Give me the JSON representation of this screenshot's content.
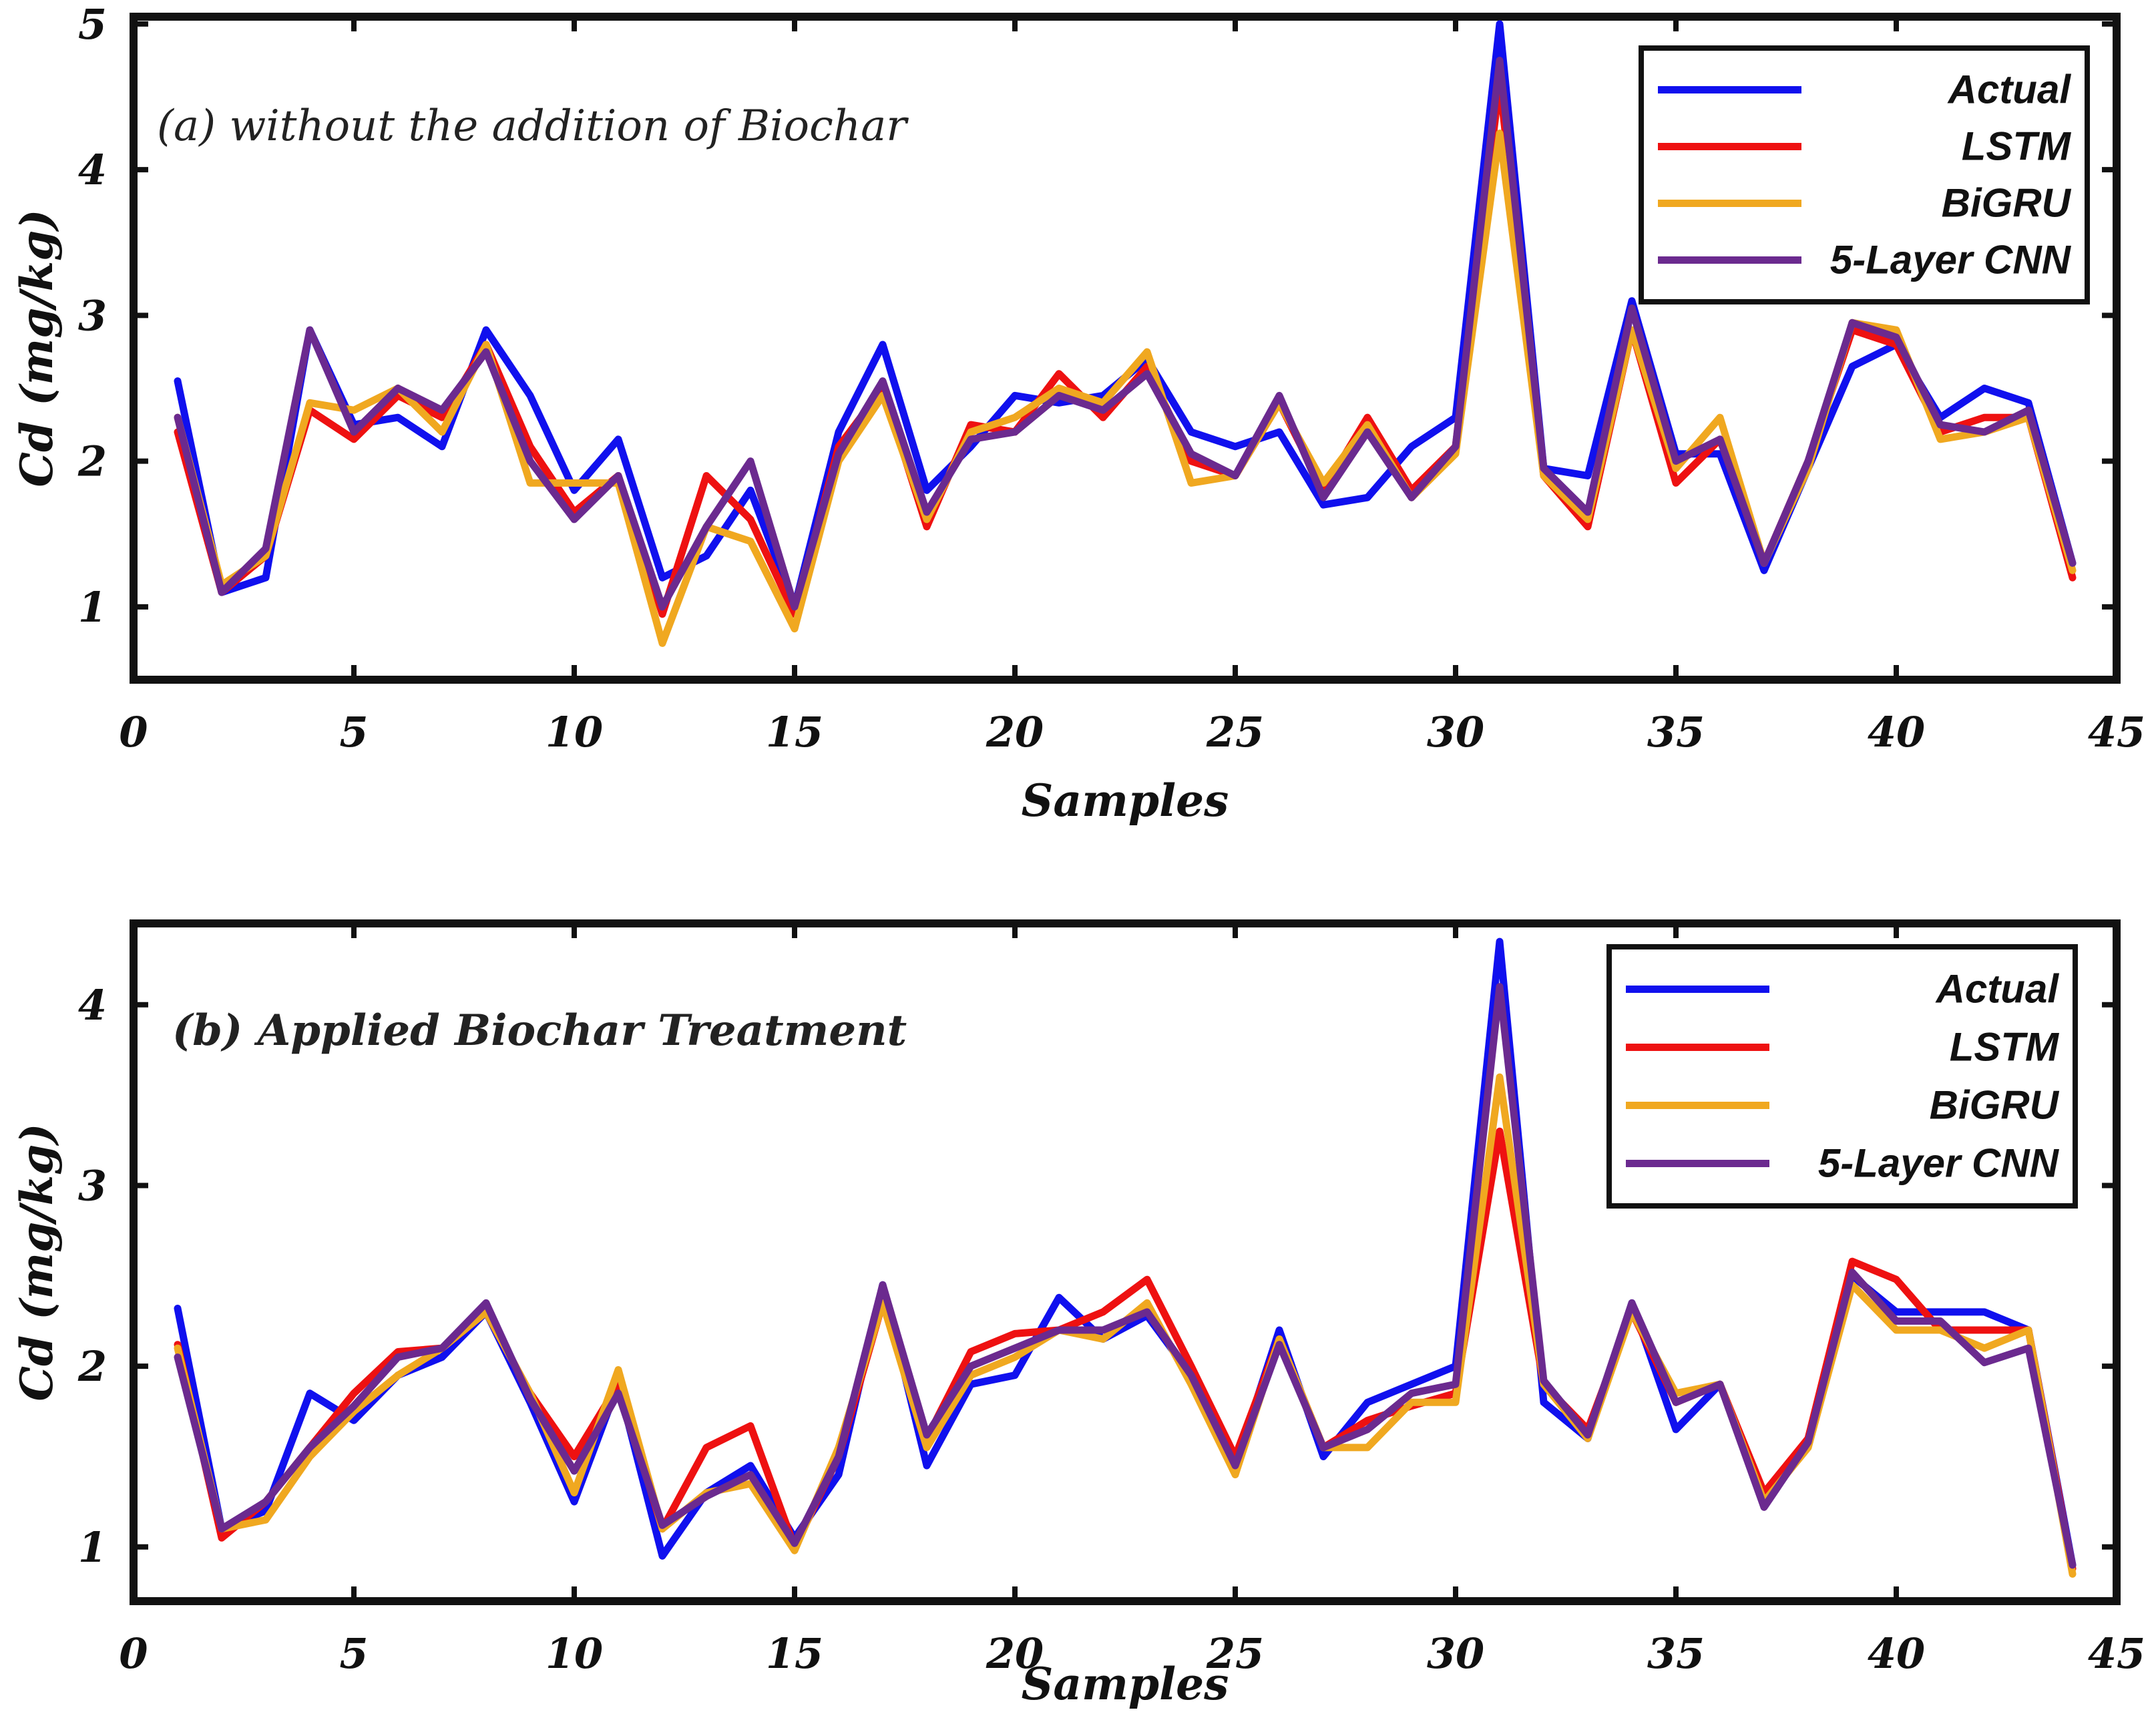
{
  "chart_data": [
    {
      "type": "line",
      "title": "(a) without the addition of Biochar",
      "title_weight": "normal",
      "xlabel": "Samples",
      "ylabel": "Cd (mg/kg)",
      "xlim": [
        0,
        45
      ],
      "ylim": [
        0.5,
        5.05
      ],
      "xticks": [
        0,
        5,
        10,
        15,
        20,
        25,
        30,
        35,
        40,
        45
      ],
      "yticks": [
        1,
        2,
        3,
        4,
        5
      ],
      "legend_position": "top-right",
      "series": [
        {
          "name": "Actual",
          "color": "#1010ee",
          "x": [
            1,
            2,
            3,
            4,
            5,
            6,
            7,
            8,
            9,
            10,
            11,
            12,
            13,
            14,
            15,
            16,
            17,
            18,
            19,
            20,
            21,
            22,
            23,
            24,
            25,
            26,
            27,
            28,
            29,
            30,
            31,
            32,
            33,
            34,
            35,
            36,
            37,
            38,
            39,
            40,
            41,
            42,
            43,
            44
          ],
          "values": [
            2.55,
            1.1,
            1.2,
            2.9,
            2.25,
            2.3,
            2.1,
            2.9,
            2.45,
            1.8,
            2.15,
            1.2,
            1.35,
            1.8,
            1.0,
            2.2,
            2.8,
            1.8,
            2.1,
            2.45,
            2.4,
            2.45,
            2.7,
            2.2,
            2.1,
            2.2,
            1.7,
            1.75,
            2.1,
            2.3,
            5.0,
            1.95,
            1.9,
            3.1,
            2.05,
            2.05,
            1.25,
            1.95,
            2.65,
            2.8,
            2.3,
            2.5,
            2.4,
            1.3
          ]
        },
        {
          "name": "LSTM",
          "color": "#ee1111",
          "x": [
            1,
            2,
            3,
            4,
            5,
            6,
            7,
            8,
            9,
            10,
            11,
            12,
            13,
            14,
            15,
            16,
            17,
            18,
            19,
            20,
            21,
            22,
            23,
            24,
            25,
            26,
            27,
            28,
            29,
            30,
            31,
            32,
            33,
            34,
            35,
            36,
            37,
            38,
            39,
            40,
            41,
            42,
            43,
            44
          ],
          "values": [
            2.2,
            1.1,
            1.35,
            2.35,
            2.15,
            2.45,
            2.3,
            2.8,
            2.1,
            1.65,
            1.9,
            0.95,
            1.9,
            1.6,
            0.95,
            2.1,
            2.5,
            1.55,
            2.25,
            2.2,
            2.6,
            2.3,
            2.65,
            2.0,
            1.9,
            2.4,
            1.8,
            2.3,
            1.8,
            2.1,
            4.6,
            1.9,
            1.55,
            2.9,
            1.85,
            2.15,
            1.3,
            2.0,
            2.9,
            2.8,
            2.2,
            2.3,
            2.3,
            1.2
          ]
        },
        {
          "name": "BiGRU",
          "color": "#f0a820",
          "x": [
            1,
            2,
            3,
            4,
            5,
            6,
            7,
            8,
            9,
            10,
            11,
            12,
            13,
            14,
            15,
            16,
            17,
            18,
            19,
            20,
            21,
            22,
            23,
            24,
            25,
            26,
            27,
            28,
            29,
            30,
            31,
            32,
            33,
            34,
            35,
            36,
            37,
            38,
            39,
            40,
            41,
            42,
            43,
            44
          ],
          "values": [
            2.3,
            1.15,
            1.35,
            2.4,
            2.35,
            2.5,
            2.2,
            2.8,
            1.85,
            1.85,
            1.85,
            0.75,
            1.55,
            1.45,
            0.85,
            2.0,
            2.45,
            1.6,
            2.2,
            2.3,
            2.5,
            2.4,
            2.75,
            1.85,
            1.9,
            2.4,
            1.85,
            2.25,
            1.75,
            2.05,
            4.25,
            1.9,
            1.6,
            2.9,
            1.95,
            2.3,
            1.3,
            1.95,
            2.95,
            2.9,
            2.15,
            2.2,
            2.3,
            1.25
          ]
        },
        {
          "name": "5-Layer CNN",
          "color": "#6b2a8f",
          "x": [
            1,
            2,
            3,
            4,
            5,
            6,
            7,
            8,
            9,
            10,
            11,
            12,
            13,
            14,
            15,
            16,
            17,
            18,
            19,
            20,
            21,
            22,
            23,
            24,
            25,
            26,
            27,
            28,
            29,
            30,
            31,
            32,
            33,
            34,
            35,
            36,
            37,
            38,
            39,
            40,
            41,
            42,
            43,
            44
          ],
          "values": [
            2.3,
            1.1,
            1.4,
            2.9,
            2.2,
            2.5,
            2.35,
            2.75,
            2.0,
            1.6,
            1.9,
            1.0,
            1.55,
            2.0,
            1.0,
            2.05,
            2.55,
            1.65,
            2.15,
            2.2,
            2.45,
            2.35,
            2.6,
            2.05,
            1.9,
            2.45,
            1.75,
            2.2,
            1.75,
            2.1,
            4.75,
            1.95,
            1.65,
            3.05,
            2.0,
            2.15,
            1.3,
            2.0,
            2.95,
            2.85,
            2.25,
            2.2,
            2.35,
            1.3
          ]
        }
      ]
    },
    {
      "type": "line",
      "title": "(b) Applied Biochar Treatment",
      "title_weight": "bold",
      "xlabel": "Samples",
      "ylabel": "Cd (mg/kg)",
      "xlim": [
        0,
        45
      ],
      "ylim": [
        0.7,
        4.45
      ],
      "xticks": [
        0,
        5,
        10,
        15,
        20,
        25,
        30,
        35,
        40,
        45
      ],
      "yticks": [
        1,
        2,
        3,
        4
      ],
      "legend_position": "top-right",
      "series": [
        {
          "name": "Actual",
          "color": "#1010ee",
          "x": [
            1,
            2,
            3,
            4,
            5,
            6,
            7,
            8,
            9,
            10,
            11,
            12,
            13,
            14,
            15,
            16,
            17,
            18,
            19,
            20,
            21,
            22,
            23,
            24,
            25,
            26,
            27,
            28,
            29,
            30,
            31,
            32,
            33,
            34,
            35,
            36,
            37,
            38,
            39,
            40,
            41,
            42,
            43,
            44
          ],
          "values": [
            2.32,
            1.1,
            1.2,
            1.85,
            1.7,
            1.95,
            2.05,
            2.3,
            1.8,
            1.25,
            1.9,
            0.95,
            1.3,
            1.45,
            1.05,
            1.4,
            2.45,
            1.45,
            1.9,
            1.95,
            2.38,
            2.15,
            2.28,
            1.95,
            1.45,
            2.2,
            1.5,
            1.8,
            1.9,
            2.0,
            4.35,
            1.8,
            1.6,
            2.35,
            1.65,
            1.9,
            1.25,
            1.6,
            2.5,
            2.3,
            2.3,
            2.3,
            2.2,
            0.9
          ]
        },
        {
          "name": "LSTM",
          "color": "#ee1111",
          "x": [
            1,
            2,
            3,
            4,
            5,
            6,
            7,
            8,
            9,
            10,
            11,
            12,
            13,
            14,
            15,
            16,
            17,
            18,
            19,
            20,
            21,
            22,
            23,
            24,
            25,
            26,
            27,
            28,
            29,
            30,
            31,
            32,
            33,
            34,
            35,
            36,
            37,
            38,
            39,
            40,
            41,
            42,
            43,
            44
          ],
          "values": [
            2.12,
            1.05,
            1.25,
            1.55,
            1.85,
            2.08,
            2.1,
            2.3,
            1.85,
            1.5,
            1.9,
            1.1,
            1.55,
            1.67,
            1.0,
            1.5,
            2.35,
            1.6,
            2.08,
            2.18,
            2.2,
            2.3,
            2.48,
            2.0,
            1.5,
            2.15,
            1.55,
            1.7,
            1.78,
            1.85,
            3.3,
            1.9,
            1.65,
            2.3,
            1.8,
            1.9,
            1.3,
            1.6,
            2.58,
            2.48,
            2.2,
            2.2,
            2.2,
            0.88
          ]
        },
        {
          "name": "BiGRU",
          "color": "#f0a820",
          "x": [
            1,
            2,
            3,
            4,
            5,
            6,
            7,
            8,
            9,
            10,
            11,
            12,
            13,
            14,
            15,
            16,
            17,
            18,
            19,
            20,
            21,
            22,
            23,
            24,
            25,
            26,
            27,
            28,
            29,
            30,
            31,
            32,
            33,
            34,
            35,
            36,
            37,
            38,
            39,
            40,
            41,
            42,
            43,
            44
          ],
          "values": [
            2.1,
            1.1,
            1.15,
            1.5,
            1.75,
            1.95,
            2.1,
            2.3,
            1.85,
            1.3,
            1.98,
            1.1,
            1.3,
            1.35,
            0.98,
            1.55,
            2.35,
            1.55,
            1.95,
            2.05,
            2.2,
            2.15,
            2.35,
            1.9,
            1.4,
            2.15,
            1.55,
            1.55,
            1.8,
            1.8,
            3.6,
            1.9,
            1.6,
            2.3,
            1.85,
            1.9,
            1.25,
            1.55,
            2.45,
            2.2,
            2.2,
            2.1,
            2.2,
            0.85
          ]
        },
        {
          "name": "5-Layer CNN",
          "color": "#6b2a8f",
          "x": [
            1,
            2,
            3,
            4,
            5,
            6,
            7,
            8,
            9,
            10,
            11,
            12,
            13,
            14,
            15,
            16,
            17,
            18,
            19,
            20,
            21,
            22,
            23,
            24,
            25,
            26,
            27,
            28,
            29,
            30,
            31,
            32,
            33,
            34,
            35,
            36,
            37,
            38,
            39,
            40,
            41,
            42,
            43,
            44
          ],
          "values": [
            2.05,
            1.1,
            1.25,
            1.55,
            1.78,
            2.05,
            2.1,
            2.35,
            1.82,
            1.42,
            1.85,
            1.12,
            1.28,
            1.4,
            1.02,
            1.5,
            2.45,
            1.62,
            2.0,
            2.1,
            2.2,
            2.2,
            2.3,
            1.95,
            1.45,
            2.12,
            1.55,
            1.65,
            1.85,
            1.9,
            4.1,
            1.92,
            1.62,
            2.35,
            1.8,
            1.9,
            1.22,
            1.58,
            2.52,
            2.25,
            2.25,
            2.02,
            2.1,
            0.9
          ]
        }
      ]
    }
  ]
}
